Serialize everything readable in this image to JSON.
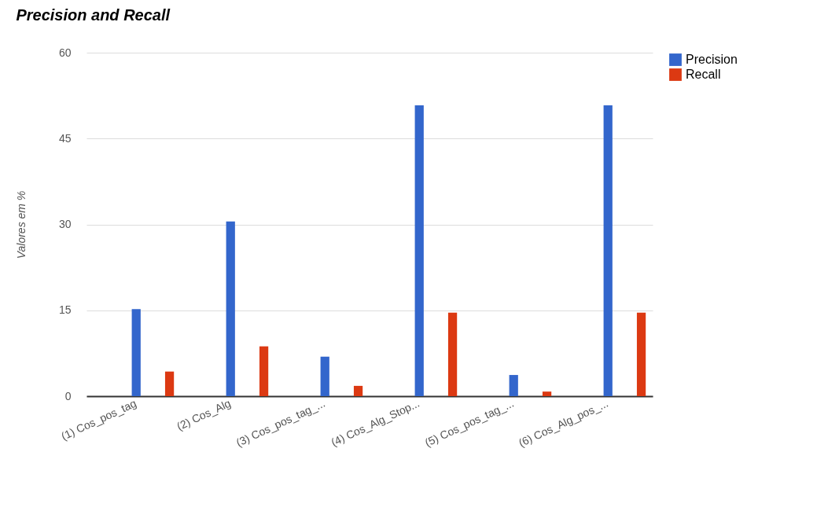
{
  "chart_data": {
    "type": "bar",
    "title": "Precision and Recall",
    "ylabel": "Valores em %",
    "categories": [
      "(1) Cos_pos_tag",
      "(2) Cos_Alg",
      "(3) Cos_pos_tag_...",
      "(4) Cos_Alg_Stop...",
      "(5) Cos_pos_tag_...",
      "(6) Cos_Alg_pos_..."
    ],
    "series": [
      {
        "name": "Precision",
        "color": "#3366cc",
        "values": [
          15.2,
          30.5,
          6.9,
          50.8,
          3.7,
          50.8
        ]
      },
      {
        "name": "Recall",
        "color": "#dc3912",
        "values": [
          4.3,
          8.7,
          1.8,
          14.6,
          0.8,
          14.6
        ]
      }
    ],
    "ylim": [
      0,
      60
    ],
    "yticks": [
      0,
      15,
      30,
      45,
      60
    ],
    "grid": "y",
    "legend": "top right"
  }
}
